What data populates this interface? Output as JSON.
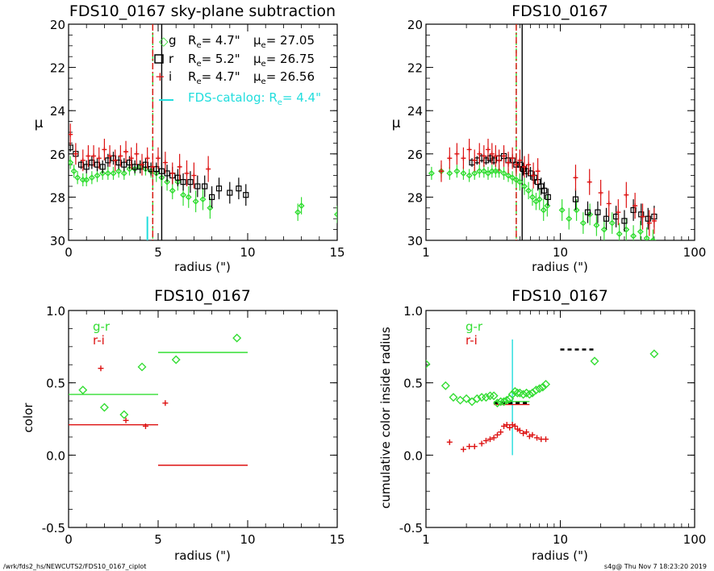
{
  "footer": {
    "left": "/wrk/fds2_hs/NEWCUTS2/FDS10_0167_ciplot",
    "right": "s4g@  Thu Nov  7 18:23:20 2019"
  },
  "colors": {
    "g": "#33dd33",
    "r": "#000000",
    "i": "#dd1111",
    "catalog": "#22dddd",
    "axis": "#000000"
  },
  "chart_data": [
    {
      "type": "scatter",
      "title": "FDS10_0167 sky-plane subtraction",
      "xlabel": "radius (\")",
      "ylabel": "μ",
      "xscale": "linear",
      "xlim": [
        0,
        15
      ],
      "ylim": [
        30,
        20
      ],
      "xticks": [
        0,
        5,
        10,
        15
      ],
      "yticks": [
        20,
        22,
        24,
        26,
        28,
        30
      ],
      "vlines": [
        {
          "x": 4.7,
          "color": "#33dd33",
          "style": "dashed"
        },
        {
          "x": 4.7,
          "color": "#dd1111",
          "style": "dashdot"
        },
        {
          "x": 5.2,
          "color": "#000000",
          "style": "solid"
        }
      ],
      "catalog_marker": {
        "x": 4.4,
        "y0": 30,
        "y1": 28.9,
        "color": "#22dddd"
      },
      "legend": [
        {
          "symbol": "diamond",
          "band": "g",
          "color": "#33dd33",
          "re_label": "R",
          "re_sub": "e",
          "re_value": "=  4.7\"",
          "mu_label": "μ",
          "mu_sub": "e",
          "mu_value": "= 27.05"
        },
        {
          "symbol": "square",
          "band": "r",
          "color": "#000000",
          "re_label": "R",
          "re_sub": "e",
          "re_value": "=  5.2\"",
          "mu_label": "μ",
          "mu_sub": "e",
          "mu_value": "= 26.75"
        },
        {
          "symbol": "plus",
          "band": "i",
          "color": "#dd1111",
          "re_label": "R",
          "re_sub": "e",
          "re_value": "=  4.7\"",
          "mu_label": "μ",
          "mu_sub": "e",
          "mu_value": "= 26.56"
        }
      ],
      "catalog_legend": {
        "text": "FDS-catalog: R",
        "sub": "e",
        "value": "=  4.4\"",
        "color": "#22dddd"
      },
      "series": [
        {
          "band": "g",
          "symbol": "diamond",
          "color": "#33dd33",
          "x": [
            0.1,
            0.3,
            0.5,
            0.8,
            1.0,
            1.3,
            1.6,
            1.9,
            2.2,
            2.5,
            2.8,
            3.1,
            3.4,
            3.7,
            4.0,
            4.3,
            4.6,
            4.9,
            5.2,
            5.5,
            5.8,
            6.1,
            6.4,
            6.7,
            7.1,
            7.5,
            7.9,
            12.8,
            13.0,
            15.0
          ],
          "y": [
            26.4,
            26.8,
            27.1,
            27.2,
            27.2,
            27.1,
            27.0,
            26.9,
            26.9,
            26.9,
            26.8,
            26.9,
            26.7,
            26.7,
            26.6,
            26.7,
            26.8,
            26.9,
            27.1,
            27.3,
            27.7,
            27.3,
            27.9,
            28.0,
            28.2,
            28.1,
            28.5,
            28.7,
            28.4,
            28.8
          ],
          "err": [
            0.3,
            0.3,
            0.3,
            0.3,
            0.3,
            0.3,
            0.3,
            0.3,
            0.3,
            0.3,
            0.3,
            0.3,
            0.3,
            0.3,
            0.3,
            0.3,
            0.3,
            0.4,
            0.4,
            0.4,
            0.4,
            0.4,
            0.5,
            0.5,
            0.5,
            0.5,
            0.5,
            0.4,
            0.4,
            0.4
          ]
        },
        {
          "band": "r",
          "symbol": "square",
          "color": "#000000",
          "x": [
            0.1,
            0.4,
            0.7,
            1.0,
            1.3,
            1.6,
            1.9,
            2.2,
            2.5,
            2.8,
            3.1,
            3.4,
            3.7,
            4.0,
            4.3,
            4.6,
            4.9,
            5.2,
            5.5,
            5.8,
            6.1,
            6.4,
            6.8,
            7.2,
            7.6,
            8.0,
            8.4,
            9.0,
            9.5,
            9.9
          ],
          "y": [
            25.7,
            26.0,
            26.5,
            26.6,
            26.4,
            26.5,
            26.6,
            26.3,
            26.2,
            26.4,
            26.5,
            26.4,
            26.6,
            26.6,
            26.5,
            26.7,
            26.7,
            26.8,
            26.9,
            27.0,
            27.1,
            27.3,
            27.3,
            27.5,
            27.5,
            28.0,
            27.6,
            27.8,
            27.6,
            27.9
          ],
          "err": [
            0.2,
            0.2,
            0.2,
            0.3,
            0.3,
            0.3,
            0.3,
            0.3,
            0.3,
            0.3,
            0.3,
            0.3,
            0.3,
            0.3,
            0.3,
            0.3,
            0.3,
            0.4,
            0.4,
            0.4,
            0.4,
            0.4,
            0.5,
            0.5,
            0.5,
            0.5,
            0.5,
            0.5,
            0.5,
            0.5
          ]
        },
        {
          "band": "i",
          "symbol": "plus",
          "color": "#dd1111",
          "x": [
            0.1,
            0.4,
            0.8,
            1.1,
            1.4,
            1.7,
            2.0,
            2.3,
            2.6,
            2.9,
            3.2,
            3.5,
            3.8,
            4.1,
            4.4,
            4.7,
            5.0,
            5.4,
            5.8,
            6.2,
            6.6,
            7.0,
            7.8
          ],
          "y": [
            25.1,
            26.0,
            26.3,
            26.1,
            26.1,
            26.2,
            25.8,
            26.1,
            26.3,
            26.1,
            25.9,
            26.2,
            26.0,
            26.5,
            26.2,
            26.6,
            26.2,
            26.4,
            26.9,
            26.6,
            26.9,
            27.0,
            26.7
          ],
          "err": [
            0.5,
            0.5,
            0.5,
            0.5,
            0.5,
            0.5,
            0.5,
            0.5,
            0.5,
            0.5,
            0.5,
            0.5,
            0.5,
            0.5,
            0.5,
            0.5,
            0.5,
            0.5,
            0.5,
            0.6,
            0.6,
            0.6,
            0.6
          ]
        }
      ]
    },
    {
      "type": "scatter",
      "title": "FDS10_0167",
      "xlabel": "radius (\")",
      "ylabel": "μ",
      "xscale": "log",
      "xlim": [
        1,
        100
      ],
      "ylim": [
        30,
        20
      ],
      "xticks": [
        1,
        10,
        100
      ],
      "yticks": [
        20,
        22,
        24,
        26,
        28,
        30
      ],
      "vlines": [
        {
          "x": 4.7,
          "color": "#33dd33",
          "style": "dashed"
        },
        {
          "x": 4.7,
          "color": "#dd1111",
          "style": "dashdot"
        },
        {
          "x": 5.2,
          "color": "#000000",
          "style": "solid"
        }
      ],
      "series": [
        {
          "band": "g",
          "symbol": "diamond",
          "color": "#33dd33",
          "x": [
            1.1,
            1.3,
            1.5,
            1.7,
            1.9,
            2.1,
            2.3,
            2.5,
            2.7,
            2.9,
            3.1,
            3.3,
            3.5,
            3.8,
            4.1,
            4.4,
            4.7,
            5.0,
            5.4,
            5.8,
            6.2,
            6.6,
            7.0,
            7.5,
            8.0,
            10.3,
            11.6,
            13.2,
            14.8,
            16.6,
            18.6,
            21.2,
            24.3,
            27.5,
            31.0,
            35.0,
            39.5,
            44.0,
            49.0
          ],
          "y": [
            26.9,
            26.8,
            26.9,
            26.8,
            26.9,
            27.0,
            26.9,
            26.8,
            26.8,
            26.9,
            26.8,
            26.8,
            26.8,
            26.9,
            27.0,
            27.1,
            27.2,
            27.3,
            27.5,
            27.7,
            28.0,
            28.2,
            28.1,
            28.6,
            28.4,
            28.6,
            29.0,
            28.6,
            29.2,
            28.8,
            29.3,
            29.5,
            29.2,
            29.7,
            29.5,
            29.8,
            29.6,
            29.9,
            30.0
          ],
          "err": [
            0.3,
            0.3,
            0.3,
            0.3,
            0.3,
            0.3,
            0.3,
            0.3,
            0.3,
            0.3,
            0.3,
            0.3,
            0.3,
            0.3,
            0.3,
            0.3,
            0.3,
            0.4,
            0.4,
            0.4,
            0.4,
            0.4,
            0.5,
            0.5,
            0.5,
            0.5,
            0.5,
            0.5,
            0.5,
            0.5,
            0.5,
            0.5,
            0.5,
            0.5,
            0.5,
            0.5,
            0.5,
            0.5,
            0.5
          ]
        },
        {
          "band": "r",
          "symbol": "square",
          "color": "#000000",
          "x": [
            2.2,
            2.4,
            2.6,
            2.8,
            3.0,
            3.2,
            3.5,
            3.8,
            4.1,
            4.4,
            4.7,
            5.0,
            5.3,
            5.6,
            6.0,
            6.4,
            6.8,
            7.2,
            7.6,
            8.1,
            13.0,
            16.0,
            19.0,
            22.0,
            26.0,
            30.0,
            35.0,
            40.0,
            45.0,
            50.0
          ],
          "y": [
            26.4,
            26.3,
            26.2,
            26.3,
            26.2,
            26.3,
            26.2,
            26.1,
            26.3,
            26.3,
            26.5,
            26.5,
            26.7,
            26.8,
            26.9,
            27.1,
            27.3,
            27.5,
            27.7,
            28.0,
            28.1,
            28.7,
            28.7,
            29.0,
            28.9,
            29.1,
            28.6,
            28.8,
            29.0,
            28.9
          ],
          "err": [
            0.2,
            0.2,
            0.2,
            0.2,
            0.2,
            0.2,
            0.2,
            0.3,
            0.3,
            0.3,
            0.3,
            0.3,
            0.3,
            0.3,
            0.3,
            0.3,
            0.4,
            0.4,
            0.4,
            0.4,
            0.5,
            0.5,
            0.5,
            0.5,
            0.5,
            0.5,
            0.5,
            0.5,
            0.5,
            0.5
          ]
        },
        {
          "band": "i",
          "symbol": "plus",
          "color": "#dd1111",
          "x": [
            1.3,
            1.5,
            1.7,
            1.9,
            2.1,
            2.3,
            2.5,
            2.7,
            2.9,
            3.1,
            3.3,
            3.5,
            3.8,
            4.1,
            4.4,
            4.7,
            5.0,
            5.4,
            5.8,
            6.3,
            6.8,
            13.0,
            16.5,
            20.0,
            23.0,
            27.0,
            31.0,
            36.0,
            41.0,
            46.0,
            50.0
          ],
          "y": [
            26.8,
            26.2,
            26.0,
            26.2,
            25.8,
            26.3,
            26.0,
            26.1,
            25.8,
            26.0,
            26.1,
            26.3,
            26.1,
            26.4,
            26.2,
            26.5,
            26.3,
            26.6,
            26.5,
            27.0,
            26.8,
            27.1,
            27.3,
            27.8,
            28.3,
            28.7,
            27.9,
            28.4,
            28.9,
            29.2,
            29.1
          ],
          "err": [
            0.5,
            0.5,
            0.5,
            0.5,
            0.5,
            0.5,
            0.5,
            0.5,
            0.5,
            0.5,
            0.5,
            0.5,
            0.5,
            0.5,
            0.5,
            0.5,
            0.5,
            0.5,
            0.5,
            0.6,
            0.6,
            0.6,
            0.6,
            0.6,
            0.6,
            0.6,
            0.6,
            0.6,
            0.6,
            0.6,
            0.6
          ]
        }
      ]
    },
    {
      "type": "scatter",
      "title": "FDS10_0167",
      "xlabel": "radius (\")",
      "ylabel": "color",
      "xscale": "linear",
      "xlim": [
        0,
        15
      ],
      "ylim": [
        -0.5,
        1.0
      ],
      "xticks": [
        0,
        5,
        10,
        15
      ],
      "yticks": [
        -0.5,
        0.0,
        0.5,
        1.0
      ],
      "legend": [
        {
          "label": "g-r",
          "color": "#33dd33"
        },
        {
          "label": "r-i",
          "color": "#dd1111"
        }
      ],
      "series": [
        {
          "name": "g-r",
          "symbol": "diamond",
          "color": "#33dd33",
          "x": [
            0.8,
            2.0,
            3.1,
            4.1,
            6.0,
            9.4
          ],
          "y": [
            0.45,
            0.33,
            0.28,
            0.61,
            0.66,
            0.81
          ]
        },
        {
          "name": "r-i",
          "symbol": "plus",
          "color": "#dd1111",
          "x": [
            1.8,
            3.2,
            4.3,
            5.4
          ],
          "y": [
            0.6,
            0.24,
            0.2,
            0.36
          ]
        }
      ],
      "hlines": [
        {
          "y": 0.42,
          "x0": 0,
          "x1": 5,
          "color": "#33dd33"
        },
        {
          "y": 0.71,
          "x0": 5,
          "x1": 10,
          "color": "#33dd33"
        },
        {
          "y": 0.21,
          "x0": 0,
          "x1": 5,
          "color": "#dd1111"
        },
        {
          "y": -0.07,
          "x0": 5,
          "x1": 10,
          "color": "#dd1111"
        }
      ]
    },
    {
      "type": "scatter",
      "title": "FDS10_0167",
      "xlabel": "radius (\")",
      "ylabel": "cumulative color inside radius",
      "xscale": "log",
      "xlim": [
        1,
        100
      ],
      "ylim": [
        -0.5,
        1.0
      ],
      "xticks": [
        1,
        10,
        100
      ],
      "yticks": [
        -0.5,
        0.0,
        0.5,
        1.0
      ],
      "legend": [
        {
          "label": "g-r",
          "color": "#33dd33"
        },
        {
          "label": "r-i",
          "color": "#dd1111"
        }
      ],
      "series": [
        {
          "name": "g-r",
          "symbol": "diamond",
          "color": "#33dd33",
          "x": [
            1.0,
            1.4,
            1.6,
            1.8,
            2.0,
            2.2,
            2.4,
            2.6,
            2.8,
            3.0,
            3.2,
            3.4,
            3.6,
            3.8,
            4.0,
            4.2,
            4.4,
            4.6,
            4.8,
            5.0,
            5.3,
            5.6,
            5.9,
            6.2,
            6.6,
            7.0,
            7.4,
            7.8,
            18.0,
            50.0
          ],
          "y": [
            0.63,
            0.48,
            0.4,
            0.38,
            0.39,
            0.37,
            0.39,
            0.4,
            0.4,
            0.41,
            0.41,
            0.36,
            0.37,
            0.37,
            0.38,
            0.39,
            0.42,
            0.44,
            0.43,
            0.43,
            0.42,
            0.43,
            0.42,
            0.43,
            0.45,
            0.46,
            0.47,
            0.49,
            0.65,
            0.7
          ]
        },
        {
          "name": "r-i",
          "symbol": "plus",
          "color": "#dd1111",
          "x": [
            1.5,
            1.9,
            2.1,
            2.3,
            2.6,
            2.8,
            3.0,
            3.2,
            3.4,
            3.6,
            3.8,
            4.0,
            4.2,
            4.4,
            4.6,
            4.8,
            5.0,
            5.3,
            5.6,
            5.9,
            6.2,
            6.7,
            7.2,
            7.8
          ],
          "y": [
            0.09,
            0.04,
            0.06,
            0.06,
            0.08,
            0.1,
            0.11,
            0.12,
            0.14,
            0.16,
            0.2,
            0.21,
            0.19,
            0.21,
            0.2,
            0.18,
            0.17,
            0.15,
            0.16,
            0.13,
            0.14,
            0.12,
            0.11,
            0.11
          ]
        }
      ],
      "hlines": [
        {
          "y": 0.37,
          "x0": 3.2,
          "x1": 5.9,
          "color": "#33dd33"
        },
        {
          "y": 0.35,
          "x0": 3.2,
          "x1": 5.9,
          "color": "#dd1111"
        },
        {
          "y": 0.36,
          "x0": 3.2,
          "x1": 5.9,
          "color": "#000000",
          "style": "dashed"
        },
        {
          "y": 0.73,
          "x0": 10.0,
          "x1": 18.0,
          "color": "#000000",
          "style": "dashed"
        }
      ],
      "vlines": [
        {
          "x": 4.4,
          "y0": 0.0,
          "y1": 0.8,
          "color": "#22dddd"
        }
      ]
    }
  ]
}
